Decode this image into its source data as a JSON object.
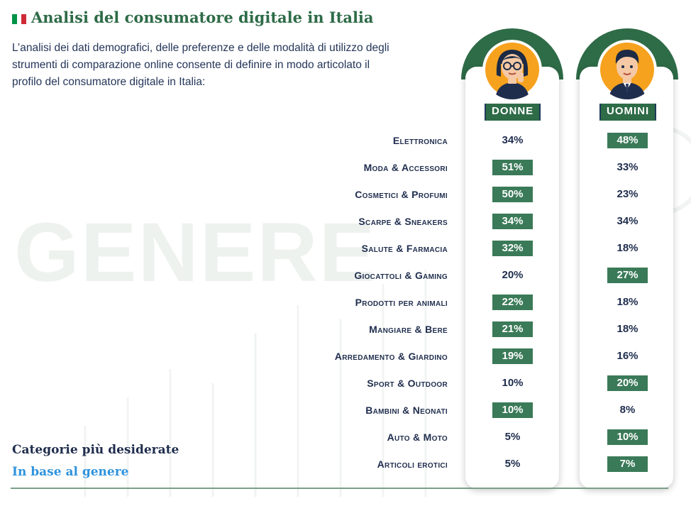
{
  "header": {
    "title": "Analisi del consumatore digitale in Italia",
    "intro": "L’analisi dei dati demografici, delle preferenze e delle modalità di utilizzo degli strumenti di comparazione online consente di definire in modo articolato il profilo del consumatore digitale in Italia:"
  },
  "flag_colors": [
    "#009246",
    "#ffffff",
    "#ce2b37"
  ],
  "watermark": "GENERE",
  "footer": {
    "title": "Categorie più desiderate",
    "subtitle": "In base al genere"
  },
  "columns": {
    "women": {
      "label": "DONNE",
      "icon": "woman-avatar-icon"
    },
    "men": {
      "label": "UOMINI",
      "icon": "man-avatar-icon"
    }
  },
  "colors": {
    "accent": "#2e6b47",
    "highlight": "#3a7a58",
    "text": "#1f2d4d",
    "subtitle": "#2f93dd"
  },
  "chart_data": {
    "type": "table",
    "categories": [
      "Elettronica",
      "Moda & Accessori",
      "Cosmetici & Profumi",
      "Scarpe & Sneakers",
      "Salute & Farmacia",
      "Giocattoli & Gaming",
      "Prodotti per animali",
      "Mangiare & Bere",
      "Arredamento & Giardino",
      "Sport & Outdoor",
      "Bambini & Neonati",
      "Auto & Moto",
      "Articoli erotici"
    ],
    "series": [
      {
        "name": "DONNE",
        "values": [
          34,
          51,
          50,
          34,
          32,
          20,
          22,
          21,
          19,
          10,
          10,
          5,
          5
        ]
      },
      {
        "name": "UOMINI",
        "values": [
          48,
          33,
          23,
          34,
          18,
          27,
          18,
          18,
          16,
          20,
          8,
          10,
          7
        ]
      }
    ],
    "highlighted": {
      "DONNE": [
        false,
        true,
        true,
        true,
        true,
        false,
        true,
        true,
        true,
        false,
        true,
        false,
        false
      ],
      "UOMINI": [
        true,
        false,
        false,
        false,
        false,
        true,
        false,
        false,
        false,
        true,
        false,
        true,
        true
      ]
    },
    "unit": "%"
  }
}
